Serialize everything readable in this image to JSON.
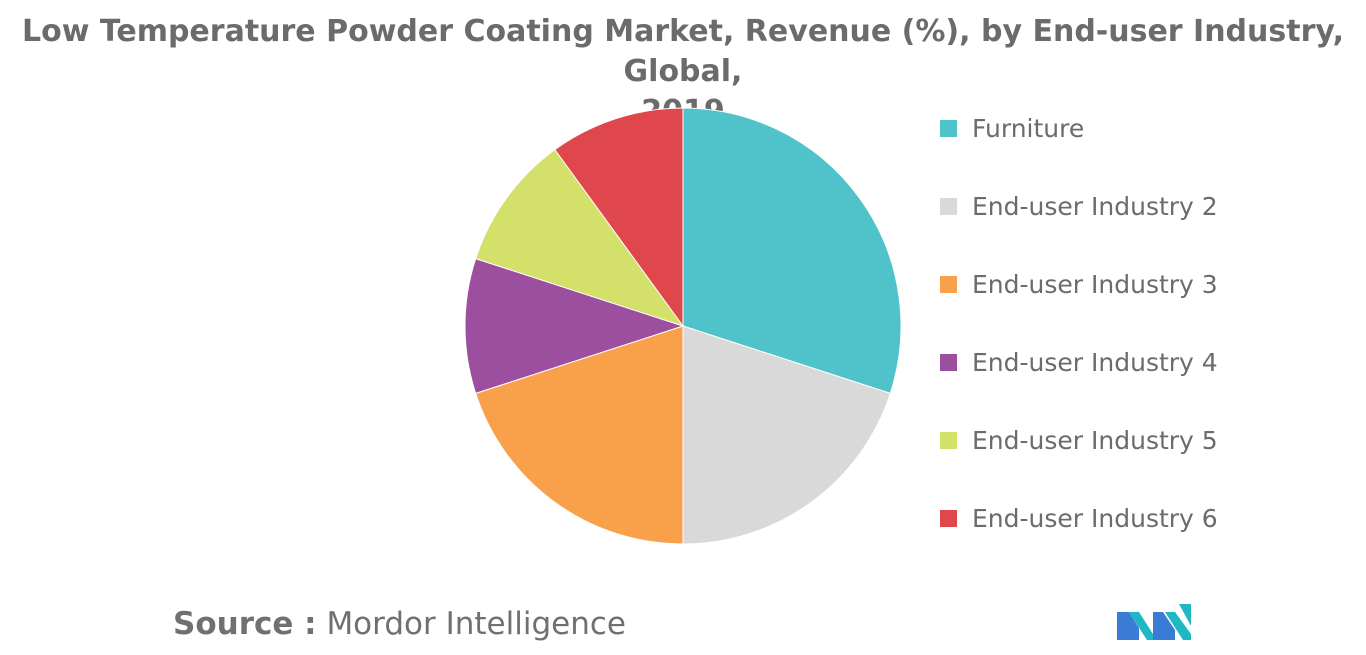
{
  "title_line1": "Low Temperature Powder Coating Market, Revenue (%), by End-user Industry, Global,",
  "title_line2": "2019",
  "source_label": "Source :",
  "source_value": "Mordor Intelligence",
  "logo_icon": "mordor-intelligence-logo",
  "chart_data": {
    "type": "pie",
    "title": "Low Temperature Powder Coating Market, Revenue (%), by End-user Industry, Global, 2019",
    "legend_position": "right",
    "start_angle_deg": 0,
    "direction": "clockwise",
    "slices": [
      {
        "label": "Furniture",
        "value": 30,
        "color": "#4fc3c9"
      },
      {
        "label": "End-user Industry 2",
        "value": 20,
        "color": "#d9d9d9"
      },
      {
        "label": "End-user Industry 3",
        "value": 20,
        "color": "#f9a04a"
      },
      {
        "label": "End-user Industry 4",
        "value": 10,
        "color": "#9c4f9e"
      },
      {
        "label": "End-user Industry 5",
        "value": 10,
        "color": "#d3e06a"
      },
      {
        "label": "End-user Industry 6",
        "value": 10,
        "color": "#e0474c"
      }
    ]
  }
}
